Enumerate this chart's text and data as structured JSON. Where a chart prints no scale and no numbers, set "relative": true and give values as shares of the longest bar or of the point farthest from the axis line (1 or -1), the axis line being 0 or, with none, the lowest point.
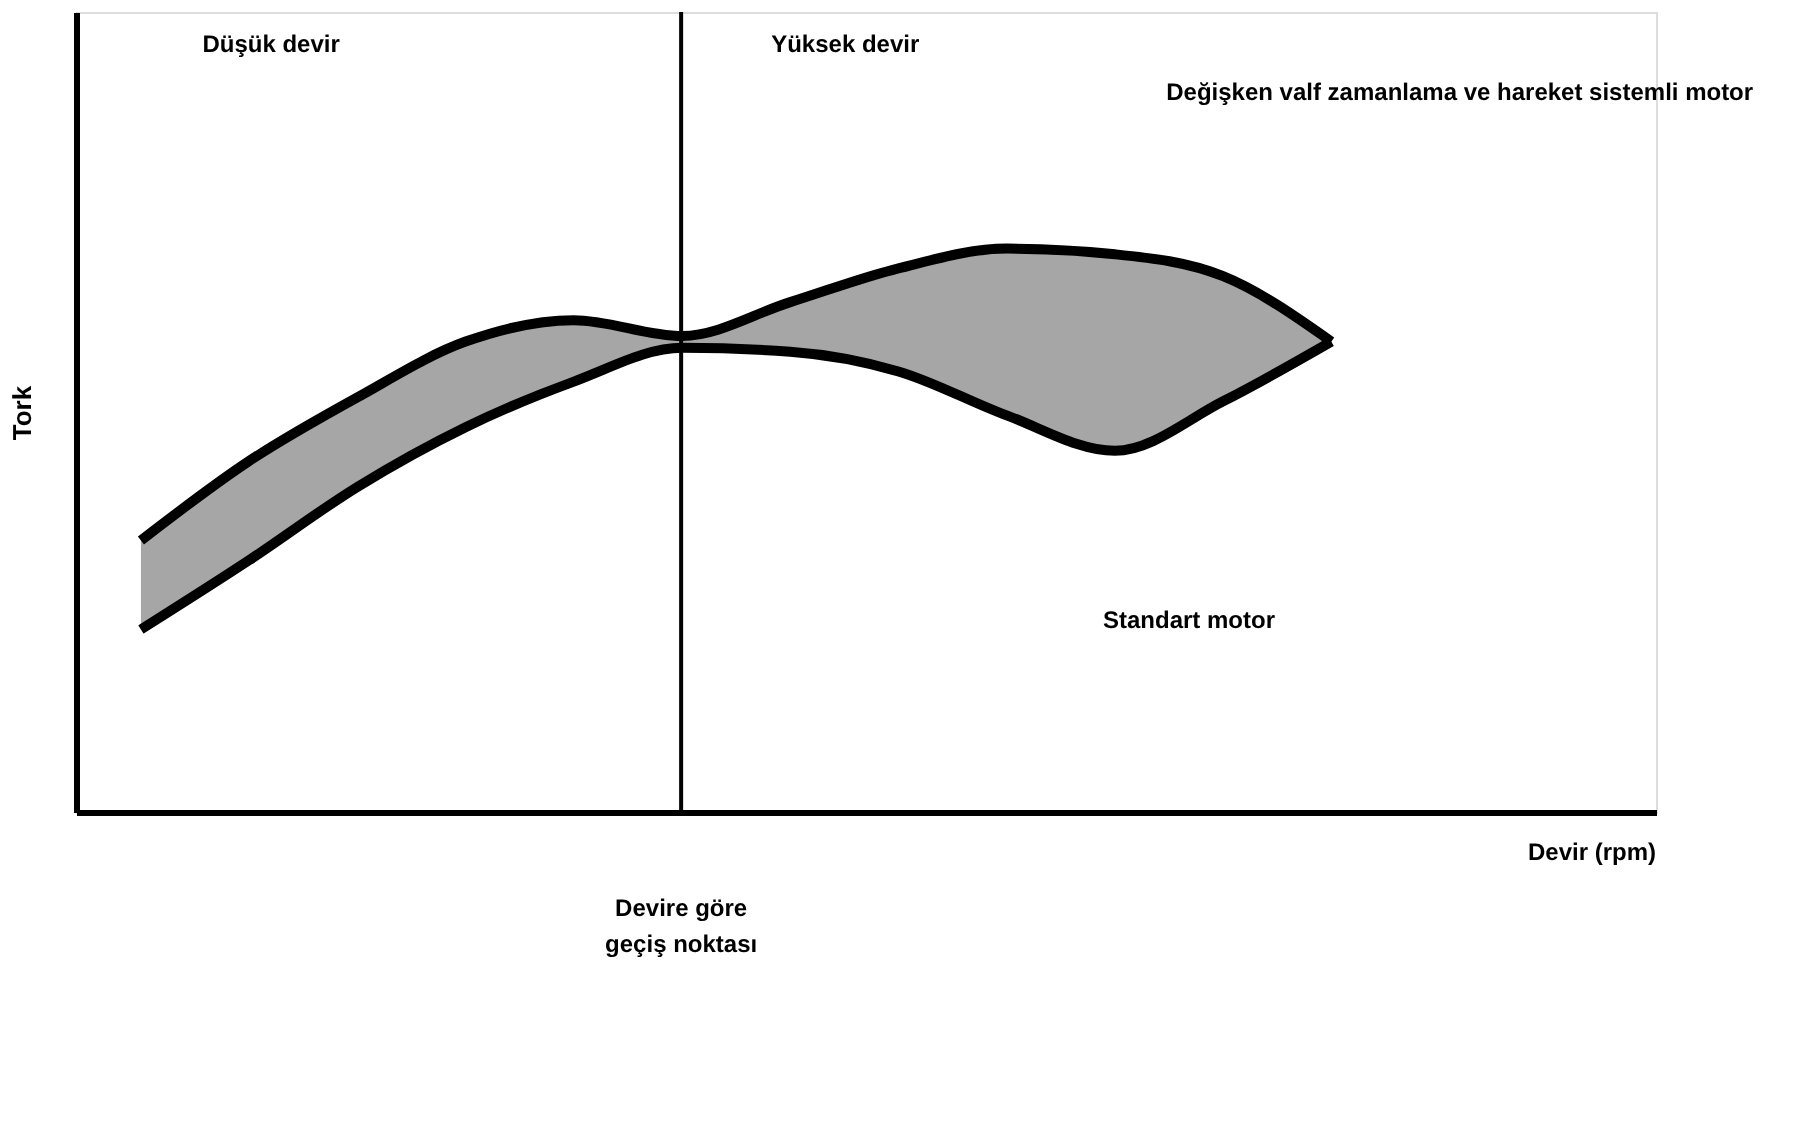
{
  "chart_data": {
    "type": "line",
    "relative": true,
    "ylabel": "Tork",
    "categories": [
      null,
      null,
      null,
      null,
      null,
      null,
      null,
      null,
      null,
      null,
      null,
      null
    ],
    "series": [
      {
        "color": "#000000",
        "values": [
          0.482,
          0.623,
          0.736,
          0.835,
          0.873,
          0.845,
          0.905,
          0.965,
          1.0,
          0.99,
          0.951,
          0.835
        ],
        "lower": [
          0.324,
          0.447,
          0.577,
          0.683,
          0.764,
          0.824,
          0.817,
          0.782,
          0.704,
          0.641,
          0.729,
          0.835
        ],
        "upper": [
          0.482,
          0.623,
          0.736,
          0.835,
          0.873,
          0.845,
          0.905,
          0.965,
          1.0,
          0.99,
          0.951,
          0.835
        ]
      },
      {
        "color": "#000000",
        "values": [
          0.324,
          0.447,
          0.577,
          0.683,
          0.764,
          0.824,
          0.817,
          0.782,
          0.704,
          0.641,
          0.729,
          0.835
        ]
      }
    ],
    "annotations": [
      "Düşük devir",
      "Yüksek devir",
      "Değişken valf zamanlama ve hareket sistemli motor",
      "Standart motor",
      "Devire göre geçiş noktası",
      "Devir (rpm)"
    ],
    "tick_labels": false,
    "grid": false,
    "line_style": "solid",
    "marker": "none"
  }
}
